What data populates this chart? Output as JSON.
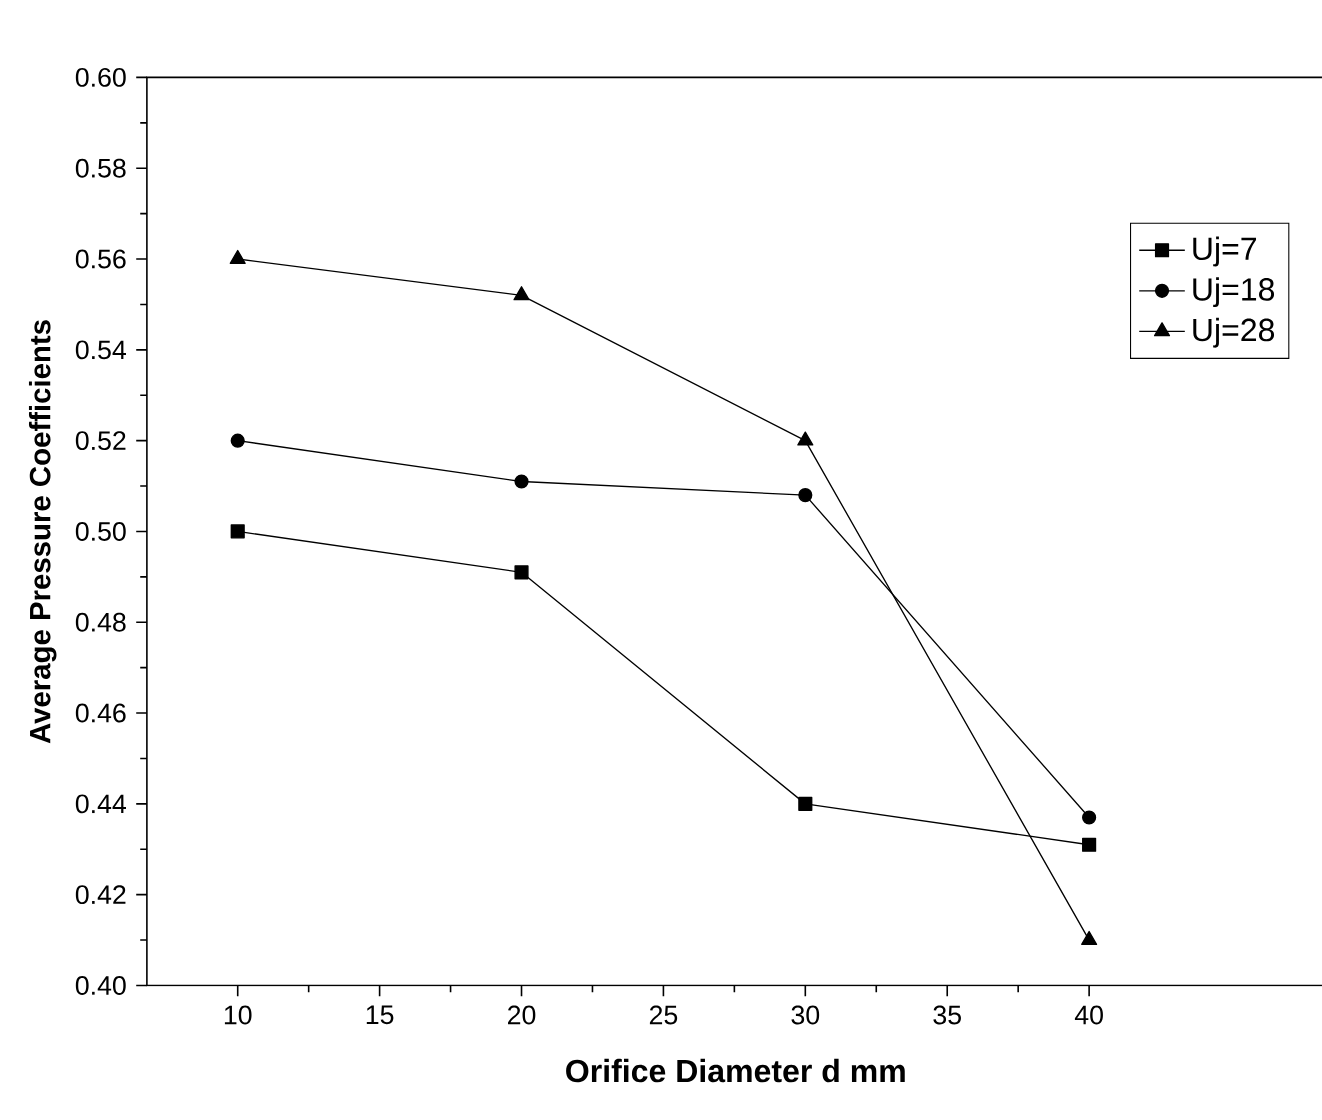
{
  "chart_data": {
    "type": "line",
    "xlabel": "Orifice Diameter  d    mm",
    "ylabel": "Average Pressure Coefficients",
    "x": [
      10,
      20,
      30,
      40
    ],
    "series": [
      {
        "name": "Uj=7",
        "color": "#000000",
        "marker": "square",
        "values": [
          0.5,
          0.491,
          0.44,
          0.431
        ]
      },
      {
        "name": "Uj=18",
        "color": "#000000",
        "marker": "circle",
        "values": [
          0.52,
          0.511,
          0.508,
          0.437
        ]
      },
      {
        "name": "Uj=28",
        "color": "#000000",
        "marker": "triangle",
        "values": [
          0.56,
          0.552,
          0.52,
          0.41
        ]
      }
    ],
    "xlim": [
      6.8,
      48.3
    ],
    "xticks": [
      10,
      15,
      20,
      25,
      30,
      35,
      40
    ],
    "ylim": [
      0.4,
      0.6
    ],
    "yticks": [
      {
        "value": 0.4,
        "label": "0.40"
      },
      {
        "value": 0.42,
        "label": "0.42"
      },
      {
        "value": 0.44,
        "label": "0.44"
      },
      {
        "value": 0.46,
        "label": "0.46"
      },
      {
        "value": 0.48,
        "label": "0.48"
      },
      {
        "value": 0.5,
        "label": "0.50"
      },
      {
        "value": 0.52,
        "label": "0.52"
      },
      {
        "value": 0.54,
        "label": "0.54"
      },
      {
        "value": 0.56,
        "label": "0.56"
      },
      {
        "value": 0.58,
        "label": "0.58"
      },
      {
        "value": 0.6,
        "label": "0.60"
      }
    ],
    "legend": "top right",
    "grid": false,
    "line_style": "solid"
  }
}
